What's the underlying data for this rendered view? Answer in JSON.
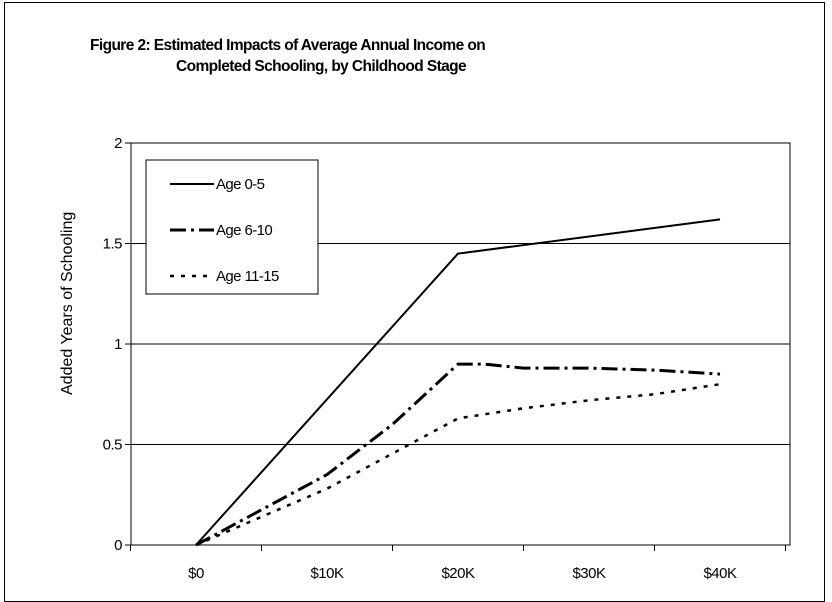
{
  "chart_data": {
    "type": "line",
    "title": "Figure 2:  Estimated Impacts of Average Annual Income on",
    "subtitle": "Completed Schooling, by Childhood Stage",
    "xlabel": "",
    "ylabel": "Added Years of Schooling",
    "categories": [
      "$0",
      "$10K",
      "$20K",
      "$30K",
      "$40K"
    ],
    "x": [
      0,
      10,
      20,
      30,
      40
    ],
    "ylim": [
      0,
      2
    ],
    "yticks": [
      "0",
      "0.5",
      "1",
      "1.5",
      "2"
    ],
    "grid": true,
    "legend_position": "top-left",
    "series": [
      {
        "name": "Age 0-5",
        "style": "solid",
        "points": [
          [
            0,
            0
          ],
          [
            20,
            1.45
          ],
          [
            40,
            1.62
          ]
        ]
      },
      {
        "name": "Age 6-10",
        "style": "dash-dot",
        "points": [
          [
            0,
            0
          ],
          [
            10,
            0.35
          ],
          [
            15,
            0.6
          ],
          [
            20,
            0.9
          ],
          [
            22,
            0.9
          ],
          [
            25,
            0.88
          ],
          [
            30,
            0.88
          ],
          [
            35,
            0.87
          ],
          [
            40,
            0.85
          ]
        ]
      },
      {
        "name": "Age 11-15",
        "style": "dotted",
        "points": [
          [
            0,
            0
          ],
          [
            10,
            0.28
          ],
          [
            20,
            0.63
          ],
          [
            25,
            0.68
          ],
          [
            30,
            0.72
          ],
          [
            35,
            0.75
          ],
          [
            40,
            0.8
          ]
        ]
      }
    ],
    "colors": {
      "line": "#000000",
      "grid": "#000000",
      "background": "#ffffff"
    }
  }
}
